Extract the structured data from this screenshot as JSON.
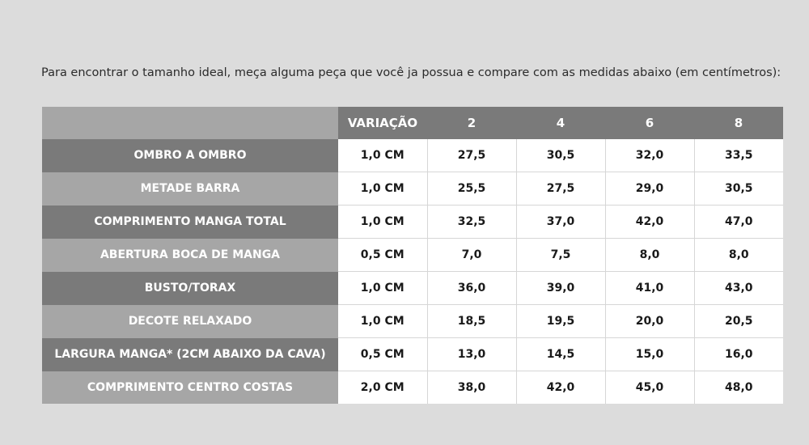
{
  "intro_text": "Para encontrar o tamanho ideal, meça alguma peça que você ja possua e compare com as medidas abaixo (em centímetros):",
  "table": {
    "header": {
      "variation": "VARIAÇÃO",
      "sizes": [
        "2",
        "4",
        "6",
        "8"
      ]
    },
    "rows": [
      {
        "label": "OMBRO A OMBRO",
        "variation": "1,0 CM",
        "values": [
          "27,5",
          "30,5",
          "32,0",
          "33,5"
        ]
      },
      {
        "label": "METADE BARRA",
        "variation": "1,0 CM",
        "values": [
          "25,5",
          "27,5",
          "29,0",
          "30,5"
        ]
      },
      {
        "label": "COMPRIMENTO MANGA TOTAL",
        "variation": "1,0 CM",
        "values": [
          "32,5",
          "37,0",
          "42,0",
          "47,0"
        ]
      },
      {
        "label": "ABERTURA BOCA DE MANGA",
        "variation": "0,5 CM",
        "values": [
          "7,0",
          "7,5",
          "8,0",
          "8,0"
        ]
      },
      {
        "label": "BUSTO/TORAX",
        "variation": "1,0 CM",
        "values": [
          "36,0",
          "39,0",
          "41,0",
          "43,0"
        ]
      },
      {
        "label": "DECOTE RELAXADO",
        "variation": "1,0 CM",
        "values": [
          "18,5",
          "19,5",
          "20,0",
          "20,5"
        ]
      },
      {
        "label": "LARGURA MANGA* (2CM ABAIXO DA CAVA)",
        "variation": "0,5 CM",
        "values": [
          "13,0",
          "14,5",
          "15,0",
          "16,0"
        ]
      },
      {
        "label": "COMPRIMENTO CENTRO COSTAS",
        "variation": "2,0 CM",
        "values": [
          "38,0",
          "42,0",
          "45,0",
          "48,0"
        ]
      }
    ]
  },
  "colors": {
    "page_background": "#dcdcdc",
    "header_dark": "#7a7a7a",
    "header_light": "#a6a6a6",
    "cell_background": "#ffffff",
    "text_dark": "#1a1a1a",
    "text_light": "#ffffff"
  }
}
